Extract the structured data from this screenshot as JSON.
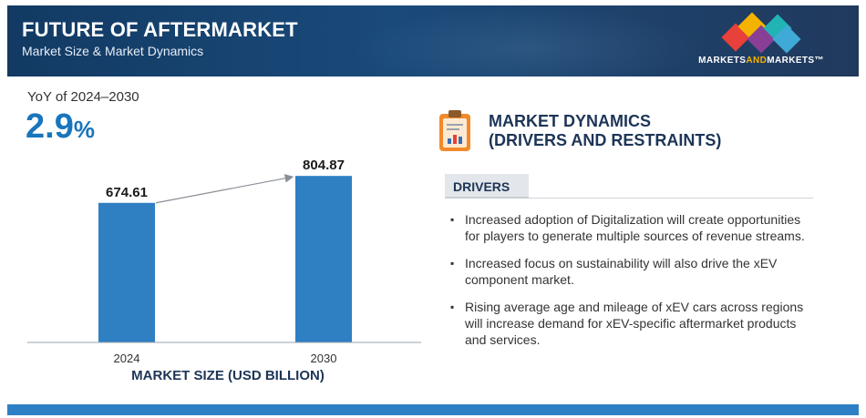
{
  "header": {
    "title": "FUTURE OF AFTERMARKET",
    "subtitle": "Market Size & Market Dynamics",
    "brand_before": "MARKETS",
    "brand_and": "AND",
    "brand_after": "MARKETS™"
  },
  "yoy": {
    "label": "YoY of 2024–2030",
    "value": "2.9",
    "unit": "%"
  },
  "chart_data": {
    "type": "bar",
    "categories": [
      "2024",
      "2030"
    ],
    "values": [
      674.61,
      804.87
    ],
    "data_labels": [
      "674.61",
      "804.87"
    ],
    "title": "",
    "xlabel": "MARKET SIZE (USD BILLION)",
    "ylabel": "",
    "ylim": [
      0,
      810
    ],
    "grid": false,
    "bar_color": "#2f7fc3"
  },
  "dynamics": {
    "title_line1": "MARKET DYNAMICS",
    "title_line2": "(DRIVERS AND RESTRAINTS)",
    "tab_label": "DRIVERS",
    "bullets": [
      "Increased adoption of Digitalization will create opportunities for players to generate multiple sources of revenue streams.",
      "Increased focus on sustainability will also drive the xEV component market.",
      "Rising average age and mileage of xEV cars across regions will increase demand for xEV-specific aftermarket products and services."
    ]
  },
  "colors": {
    "header_bg": "#1a4a7a",
    "accent_blue": "#1976bd",
    "bar": "#2f7fc3",
    "footer": "#2e80c4",
    "logo_red": "#e8403a",
    "logo_yellow": "#f4b300",
    "logo_teal": "#22b3b5",
    "logo_purple": "#8a3f96"
  }
}
